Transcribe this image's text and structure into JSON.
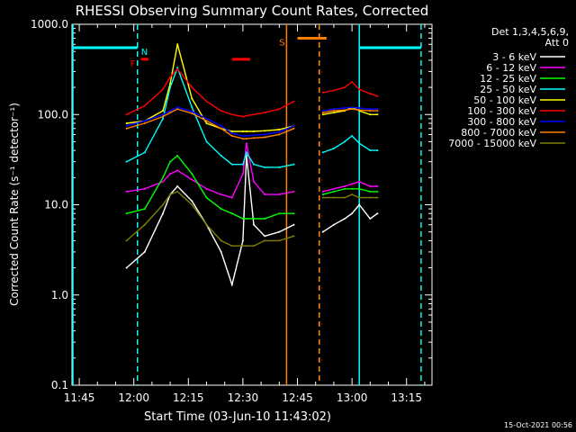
{
  "chart_data": {
    "type": "line",
    "title": "RHESSI Observing Summary Count Rates, Corrected",
    "xlabel": "Start Time (03-Jun-10 11:43:02)",
    "ylabel": "Corrected Count Rate (s⁻¹ detector⁻¹)",
    "ylim": [
      0.1,
      1000
    ],
    "yscale": "log",
    "xlim": [
      "11:43",
      "13:22"
    ],
    "x_ticks": [
      "11:45",
      "12:00",
      "12:15",
      "12:30",
      "12:45",
      "13:00",
      "13:15"
    ],
    "y_ticks": [
      "0.1",
      "1.0",
      "10.0",
      "100.0",
      "1000.0"
    ],
    "grid": false,
    "legend_position": "top-right",
    "legend_header": [
      "Det 1,3,4,5,6,9,",
      "Att 0"
    ],
    "footer_date": "15-Oct-2021 00:56",
    "series": [
      {
        "name": "3 - 6 keV",
        "color": "#ffffff",
        "x": [
          "11:58",
          "12:03",
          "12:08",
          "12:10",
          "12:12",
          "12:16",
          "12:20",
          "12:24",
          "12:27",
          "12:30",
          "12:31",
          "12:33",
          "12:36",
          "12:40",
          "12:44",
          "12:52",
          "12:55",
          "12:58",
          "13:00",
          "13:02",
          "13:05",
          "13:07"
        ],
        "y": [
          2,
          3,
          8,
          13,
          16,
          11,
          6,
          3,
          1.3,
          4,
          35,
          6,
          4.5,
          5,
          6,
          5,
          6,
          7,
          8,
          10,
          7,
          8
        ]
      },
      {
        "name": "6 - 12 keV",
        "color": "#ff00ff",
        "x": [
          "11:58",
          "12:03",
          "12:08",
          "12:10",
          "12:12",
          "12:16",
          "12:20",
          "12:24",
          "12:27",
          "12:30",
          "12:31",
          "12:33",
          "12:36",
          "12:40",
          "12:44",
          "12:52",
          "12:55",
          "12:58",
          "13:00",
          "13:02",
          "13:05",
          "13:07"
        ],
        "y": [
          14,
          15,
          18,
          22,
          24,
          19,
          15,
          13,
          12,
          22,
          48,
          18,
          13,
          13,
          14,
          14,
          15,
          16,
          17,
          18,
          16,
          16
        ]
      },
      {
        "name": "12 - 25 keV",
        "color": "#00ff00",
        "x": [
          "11:58",
          "12:03",
          "12:08",
          "12:10",
          "12:12",
          "12:16",
          "12:20",
          "12:24",
          "12:27",
          "12:30",
          "12:31",
          "12:33",
          "12:36",
          "12:40",
          "12:44",
          "12:52",
          "12:55",
          "12:58",
          "13:00",
          "13:02",
          "13:05",
          "13:07"
        ],
        "y": [
          8,
          9,
          20,
          30,
          35,
          22,
          12,
          9,
          8,
          7,
          7,
          7,
          7,
          8,
          8,
          13,
          14,
          15,
          15,
          15,
          14,
          14
        ]
      },
      {
        "name": "25 - 50 keV",
        "color": "#00ffff",
        "x": [
          "11:58",
          "12:03",
          "12:08",
          "12:10",
          "12:12",
          "12:16",
          "12:20",
          "12:24",
          "12:27",
          "12:30",
          "12:31",
          "12:33",
          "12:36",
          "12:40",
          "12:44",
          "12:52",
          "12:55",
          "12:58",
          "13:00",
          "13:02",
          "13:05",
          "13:07"
        ],
        "y": [
          30,
          38,
          90,
          200,
          330,
          120,
          50,
          35,
          28,
          28,
          38,
          28,
          26,
          26,
          28,
          38,
          42,
          50,
          58,
          48,
          40,
          40
        ]
      },
      {
        "name": "50 - 100 keV",
        "color": "#ffff00",
        "x": [
          "11:58",
          "12:03",
          "12:08",
          "12:10",
          "12:12",
          "12:16",
          "12:20",
          "12:24",
          "12:27",
          "12:30",
          "12:31",
          "12:33",
          "12:36",
          "12:40",
          "12:44",
          "12:52",
          "12:55",
          "12:58",
          "13:00",
          "13:02",
          "13:05",
          "13:07"
        ],
        "y": [
          80,
          85,
          110,
          220,
          600,
          150,
          80,
          70,
          65,
          65,
          65,
          65,
          66,
          68,
          75,
          100,
          105,
          110,
          120,
          110,
          100,
          100
        ]
      },
      {
        "name": "100 - 300 keV",
        "color": "#ff0000",
        "x": [
          "11:58",
          "12:03",
          "12:08",
          "12:10",
          "12:12",
          "12:16",
          "12:20",
          "12:24",
          "12:27",
          "12:30",
          "12:31",
          "12:33",
          "12:36",
          "12:40",
          "12:44",
          "12:52",
          "12:55",
          "12:58",
          "13:00",
          "13:02",
          "13:05",
          "13:07"
        ],
        "y": [
          100,
          125,
          190,
          260,
          320,
          200,
          140,
          110,
          100,
          95,
          97,
          100,
          105,
          115,
          140,
          175,
          185,
          200,
          230,
          190,
          170,
          160
        ]
      },
      {
        "name": "300 - 800 keV",
        "color": "#0000ff",
        "x": [
          "11:58",
          "12:03",
          "12:08",
          "12:10",
          "12:12",
          "12:16",
          "12:20",
          "12:24",
          "12:27",
          "12:30",
          "12:31",
          "12:33",
          "12:36",
          "12:40",
          "12:44",
          "12:52",
          "12:55",
          "12:58",
          "13:00",
          "13:02",
          "13:05",
          "13:07"
        ],
        "y": [
          75,
          85,
          100,
          110,
          120,
          108,
          90,
          75,
          62,
          58,
          58,
          59,
          60,
          64,
          75,
          110,
          115,
          118,
          120,
          118,
          115,
          115
        ]
      },
      {
        "name": "800 - 7000 keV",
        "color": "#ff8000",
        "x": [
          "11:58",
          "12:03",
          "12:08",
          "12:10",
          "12:12",
          "12:16",
          "12:20",
          "12:24",
          "12:27",
          "12:30",
          "12:31",
          "12:33",
          "12:36",
          "12:40",
          "12:44",
          "12:52",
          "12:55",
          "12:58",
          "13:00",
          "13:02",
          "13:05",
          "13:07"
        ],
        "y": [
          70,
          80,
          95,
          105,
          115,
          103,
          85,
          70,
          58,
          54,
          54,
          55,
          56,
          60,
          70,
          105,
          110,
          112,
          115,
          112,
          110,
          110
        ]
      },
      {
        "name": "7000 - 15000 keV",
        "color": "#808000",
        "x": [
          "11:58",
          "12:03",
          "12:08",
          "12:10",
          "12:12",
          "12:16",
          "12:20",
          "12:24",
          "12:27",
          "12:30",
          "12:31",
          "12:33",
          "12:36",
          "12:40",
          "12:44",
          "12:52",
          "12:55",
          "12:58",
          "13:00",
          "13:02",
          "13:05",
          "13:07"
        ],
        "y": [
          4,
          6,
          10,
          13,
          14,
          10,
          6,
          4,
          3.5,
          3.5,
          3.5,
          3.5,
          4,
          4,
          4.5,
          12,
          12,
          12,
          13,
          12,
          12,
          12
        ]
      }
    ],
    "data_gaps": [
      [
        "12:45",
        "12:52"
      ]
    ],
    "flag_bars": [
      {
        "label": "",
        "color": "#00ffff",
        "y": 550,
        "from": "11:43",
        "to": "12:01"
      },
      {
        "label": "N",
        "color": "#00ffff",
        "y": 550,
        "from": "",
        "to": "",
        "label_at": "12:02"
      },
      {
        "label": "F",
        "color": "#ff0000",
        "y": 410,
        "from": "12:02",
        "to": "12:04",
        "label_at": "11:59"
      },
      {
        "label": "",
        "color": "#ff0000",
        "y": 410,
        "from": "12:27",
        "to": "12:32"
      },
      {
        "label": "S",
        "color": "#ff8000",
        "y": 700,
        "from": "12:45",
        "to": "12:53",
        "label_at": "12:40"
      },
      {
        "label": "",
        "color": "#00ffff",
        "y": 550,
        "from": "13:02",
        "to": "13:19"
      }
    ],
    "vertical_lines": [
      {
        "x": "11:42",
        "color": "#00ffff",
        "style": "solid"
      },
      {
        "x": "12:01",
        "color": "#00ffff",
        "style": "dashed"
      },
      {
        "x": "12:42",
        "color": "#ff8000",
        "style": "solid"
      },
      {
        "x": "12:51",
        "color": "#ff8000",
        "style": "dashed"
      },
      {
        "x": "13:02",
        "color": "#00ffff",
        "style": "solid"
      },
      {
        "x": "13:19",
        "color": "#00ffff",
        "style": "dashed"
      }
    ]
  }
}
